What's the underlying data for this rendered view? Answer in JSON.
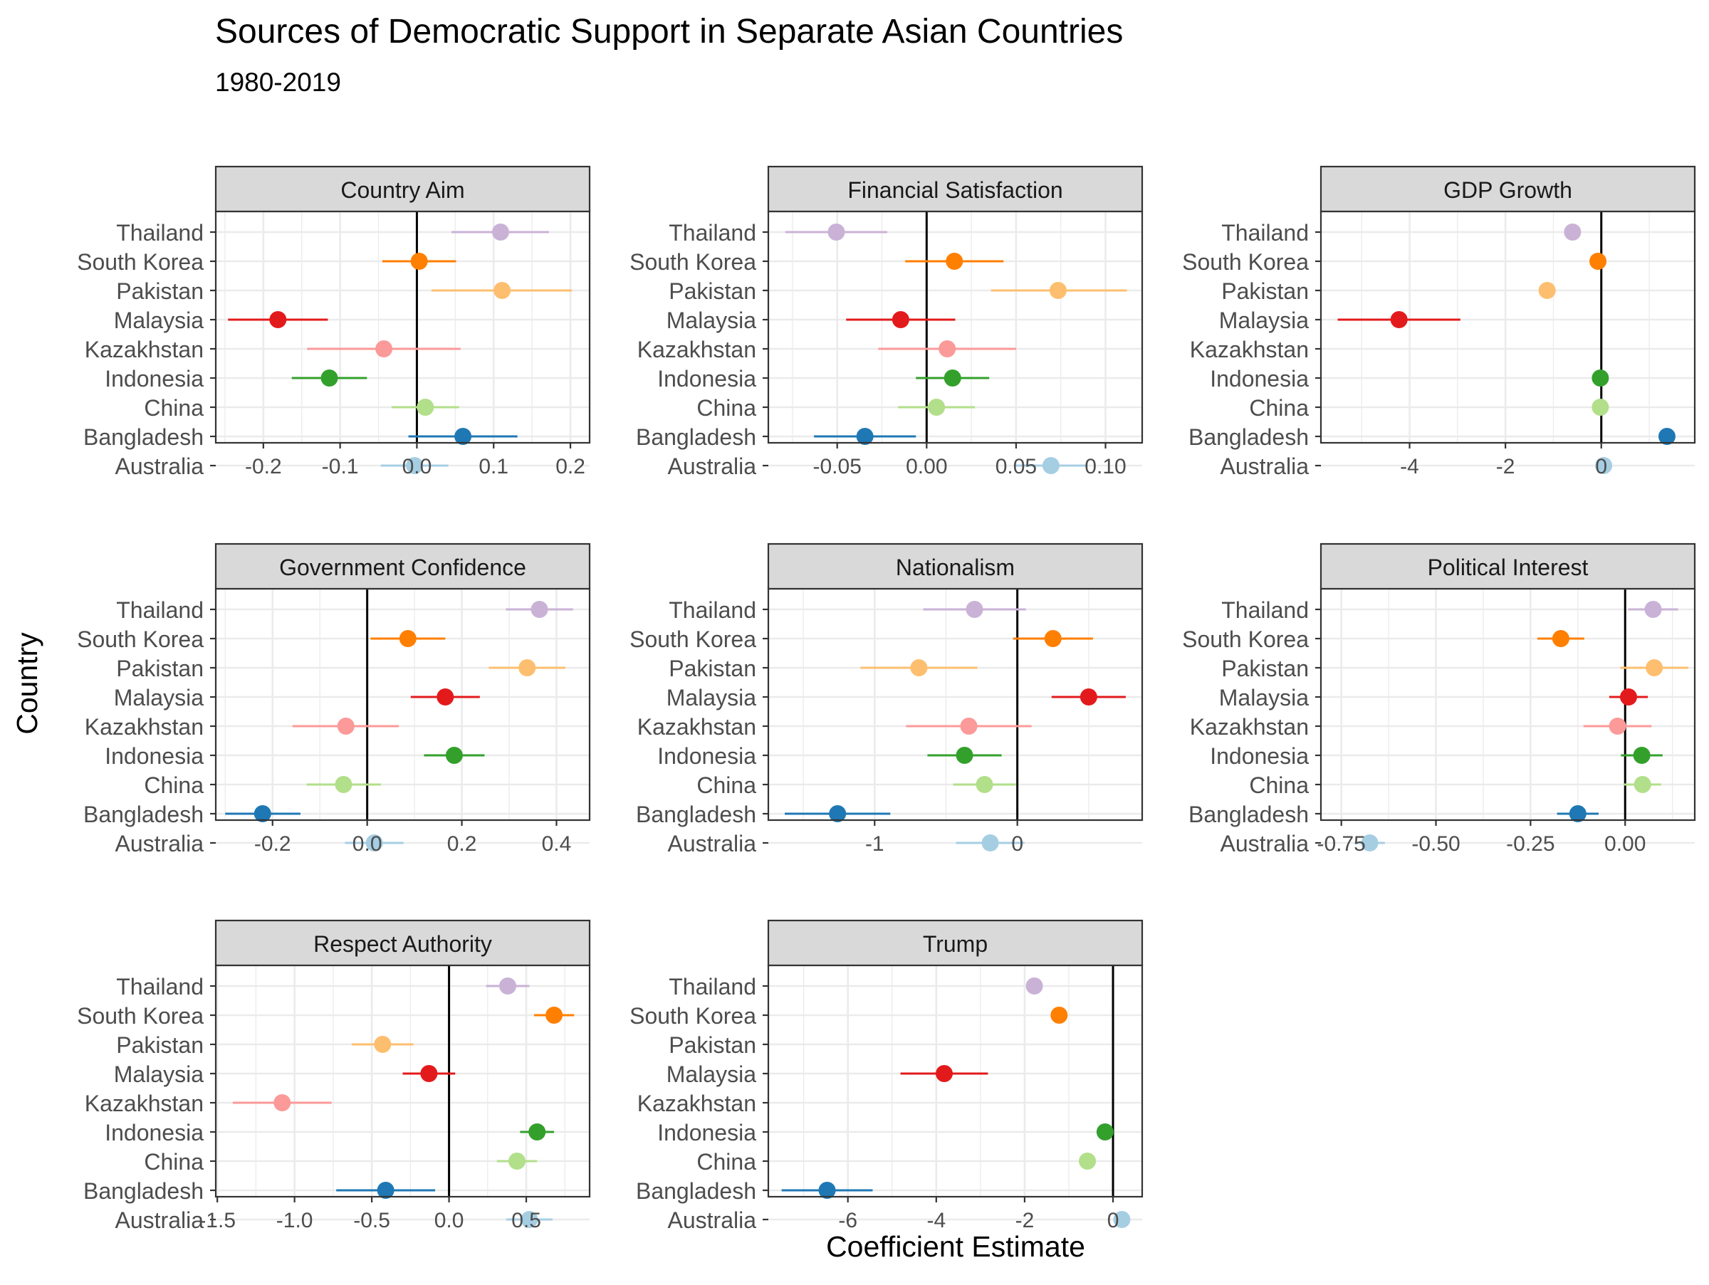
{
  "chart_data": {
    "type": "scatter",
    "title": "Sources of Democratic Support in Separate Asian Countries",
    "subtitle": "1980-2019",
    "xlabel": "Coefficient Estimate",
    "ylabel": "Country",
    "countries": [
      "Australia",
      "Bangladesh",
      "China",
      "Indonesia",
      "Kazakhstan",
      "Malaysia",
      "Pakistan",
      "South Korea",
      "Thailand"
    ],
    "colors": {
      "Australia": "#a6cee3",
      "Bangladesh": "#1f78b4",
      "China": "#b2df8a",
      "Indonesia": "#33a02c",
      "Kazakhstan": "#fb9a99",
      "Malaysia": "#e31a1c",
      "Pakistan": "#fdbf6f",
      "South Korea": "#ff7f00",
      "Thailand": "#cab2d6"
    },
    "grid": true,
    "zero_line": true,
    "panels": [
      {
        "name": "Country Aim",
        "xlim": [
          -0.262,
          0.225
        ],
        "ticks": [
          -0.2,
          -0.1,
          0.0,
          0.1,
          0.2
        ],
        "tick_labels": [
          "-0.2",
          "-0.1",
          "0.0",
          "0.1",
          "0.2"
        ],
        "points": {
          "Thailand": [
            0.109,
            0.045,
            0.172
          ],
          "South Korea": [
            0.003,
            -0.045,
            0.051
          ],
          "Pakistan": [
            0.111,
            0.019,
            0.202
          ],
          "Malaysia": [
            -0.181,
            -0.246,
            -0.116
          ],
          "Kazakhstan": [
            -0.043,
            -0.143,
            0.057
          ],
          "Indonesia": [
            -0.114,
            -0.163,
            -0.065
          ],
          "China": [
            0.011,
            -0.033,
            0.055
          ],
          "Bangladesh": [
            0.06,
            -0.011,
            0.131
          ],
          "Australia": [
            -0.003,
            -0.047,
            0.041
          ]
        }
      },
      {
        "name": "Financial Satisfaction",
        "xlim": [
          -0.0885,
          0.1205
        ],
        "ticks": [
          -0.05,
          0.0,
          0.05,
          0.1
        ],
        "tick_labels": [
          "-0.05",
          "0.00",
          "0.05",
          "0.10"
        ],
        "points": {
          "Thailand": [
            -0.0505,
            -0.079,
            -0.022
          ],
          "South Korea": [
            0.0155,
            -0.012,
            0.043
          ],
          "Pakistan": [
            0.0735,
            0.036,
            0.112
          ],
          "Malaysia": [
            -0.0145,
            -0.045,
            0.016
          ],
          "Kazakhstan": [
            0.0115,
            -0.027,
            0.05
          ],
          "Indonesia": [
            0.0145,
            -0.006,
            0.035
          ],
          "China": [
            0.0055,
            -0.016,
            0.027
          ],
          "Bangladesh": [
            -0.0345,
            -0.063,
            -0.006
          ],
          "Australia": [
            0.0695,
            0.049,
            0.09
          ]
        }
      },
      {
        "name": "GDP Growth",
        "xlim": [
          -5.85,
          1.95
        ],
        "ticks": [
          -4,
          -2,
          0
        ],
        "tick_labels": [
          "-4",
          "-2",
          "0"
        ],
        "points": {
          "Thailand": [
            -0.6,
            -0.6,
            -0.6
          ],
          "South Korea": [
            -0.07,
            -0.07,
            -0.07
          ],
          "Pakistan": [
            -1.13,
            -1.13,
            -1.13
          ],
          "Malaysia": [
            -4.22,
            -5.5,
            -2.94
          ],
          "Indonesia": [
            -0.02,
            -0.02,
            -0.02
          ],
          "China": [
            -0.02,
            -0.02,
            -0.02
          ],
          "Bangladesh": [
            1.37,
            1.25,
            1.49
          ],
          "Australia": [
            0.05,
            0.05,
            0.05
          ]
        }
      },
      {
        "name": "Government Confidence",
        "xlim": [
          -0.32,
          0.47
        ],
        "ticks": [
          -0.2,
          0.0,
          0.2,
          0.4
        ],
        "tick_labels": [
          "-0.2",
          "0.0",
          "0.2",
          "0.4"
        ],
        "points": {
          "Thailand": [
            0.364,
            0.293,
            0.435
          ],
          "South Korea": [
            0.086,
            0.007,
            0.165
          ],
          "Pakistan": [
            0.338,
            0.257,
            0.419
          ],
          "Malaysia": [
            0.165,
            0.092,
            0.238
          ],
          "Kazakhstan": [
            -0.045,
            -0.158,
            0.067
          ],
          "Indonesia": [
            0.184,
            0.12,
            0.248
          ],
          "China": [
            -0.05,
            -0.128,
            0.029
          ],
          "Bangladesh": [
            -0.221,
            -0.3,
            -0.141
          ],
          "Australia": [
            0.015,
            -0.047,
            0.077
          ]
        }
      },
      {
        "name": "Nationalism",
        "xlim": [
          -1.745,
          0.875
        ],
        "ticks": [
          -1,
          0
        ],
        "tick_labels": [
          "-1",
          "0"
        ],
        "points": {
          "Thailand": [
            -0.3,
            -0.66,
            0.06
          ],
          "South Korea": [
            0.25,
            -0.03,
            0.53
          ],
          "Pakistan": [
            -0.69,
            -1.1,
            -0.28
          ],
          "Malaysia": [
            0.5,
            0.24,
            0.76
          ],
          "Kazakhstan": [
            -0.34,
            -0.78,
            0.1
          ],
          "Indonesia": [
            -0.37,
            -0.63,
            -0.11
          ],
          "China": [
            -0.23,
            -0.45,
            -0.01
          ],
          "Bangladesh": [
            -1.26,
            -1.63,
            -0.89
          ],
          "Australia": [
            -0.19,
            -0.43,
            0.05
          ]
        }
      },
      {
        "name": "Political Interest",
        "xlim": [
          -0.804,
          0.184
        ],
        "ticks": [
          -0.75,
          -0.5,
          -0.25,
          0.0
        ],
        "tick_labels": [
          "-0.75",
          "-0.50",
          "-0.25",
          "0.00"
        ],
        "points": {
          "Thailand": [
            0.074,
            0.008,
            0.14
          ],
          "South Korea": [
            -0.17,
            -0.232,
            -0.108
          ],
          "Pakistan": [
            0.077,
            -0.013,
            0.167
          ],
          "Malaysia": [
            0.009,
            -0.042,
            0.06
          ],
          "Kazakhstan": [
            -0.02,
            -0.11,
            0.07
          ],
          "Indonesia": [
            0.044,
            -0.011,
            0.099
          ],
          "China": [
            0.046,
            -0.003,
            0.095
          ],
          "Bangladesh": [
            -0.125,
            -0.18,
            -0.07
          ],
          "Australia": [
            -0.675,
            -0.715,
            -0.635
          ]
        }
      },
      {
        "name": "Respect Authority",
        "xlim": [
          -1.51,
          0.91
        ],
        "ticks": [
          -1.5,
          -1.0,
          -0.5,
          0.0,
          0.5
        ],
        "tick_labels": [
          "-1.5",
          "-1.0",
          "-0.5",
          "0.0",
          "0.5"
        ],
        "points": {
          "Thailand": [
            0.38,
            0.24,
            0.52
          ],
          "South Korea": [
            0.68,
            0.55,
            0.81
          ],
          "Pakistan": [
            -0.43,
            -0.63,
            -0.23
          ],
          "Malaysia": [
            -0.13,
            -0.3,
            0.04
          ],
          "Kazakhstan": [
            -1.08,
            -1.4,
            -0.76
          ],
          "Indonesia": [
            0.57,
            0.46,
            0.68
          ],
          "China": [
            0.44,
            0.31,
            0.57
          ],
          "Bangladesh": [
            -0.41,
            -0.73,
            -0.09
          ],
          "Australia": [
            0.52,
            0.37,
            0.67
          ]
        }
      },
      {
        "name": "Trump",
        "xlim": [
          -7.8,
          0.66
        ],
        "ticks": [
          -6,
          -4,
          -2,
          0
        ],
        "tick_labels": [
          "-6",
          "-4",
          "-2",
          "0"
        ],
        "points": {
          "Thailand": [
            -1.78,
            -1.78,
            -1.78
          ],
          "South Korea": [
            -1.22,
            -1.22,
            -1.22
          ],
          "Malaysia": [
            -3.82,
            -4.81,
            -2.83
          ],
          "Indonesia": [
            -0.18,
            -0.18,
            -0.18
          ],
          "China": [
            -0.58,
            -0.58,
            -0.58
          ],
          "Bangladesh": [
            -6.47,
            -7.5,
            -5.44
          ],
          "Australia": [
            0.2,
            0.2,
            0.2
          ]
        }
      }
    ]
  }
}
